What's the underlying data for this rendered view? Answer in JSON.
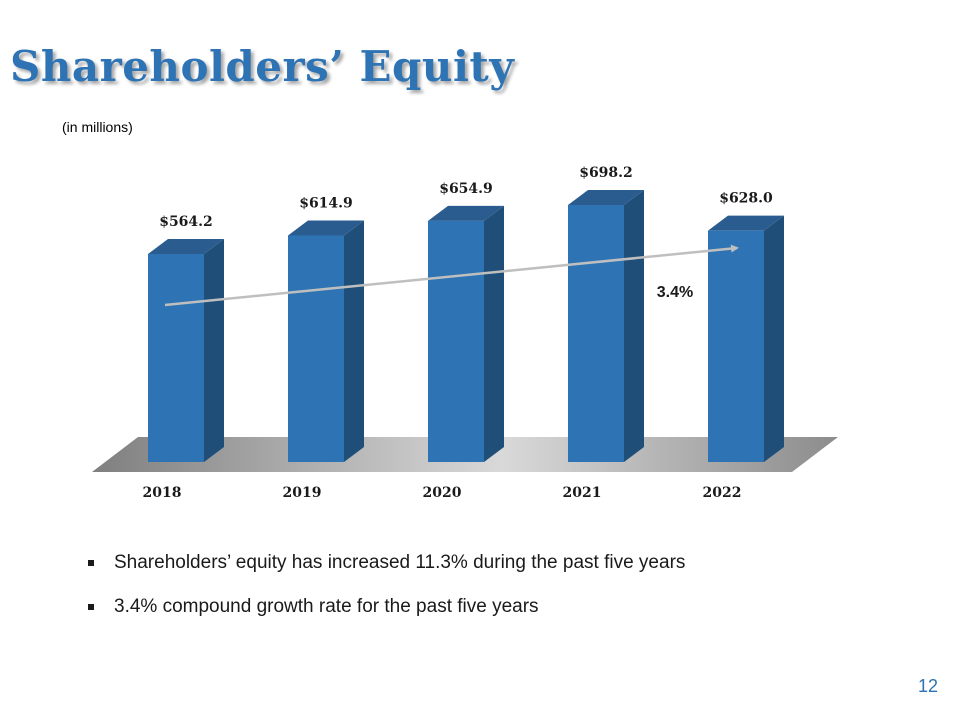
{
  "slide": {
    "title": "Shareholders’ Equity",
    "subtitle": "(in millions)",
    "page_number": "12"
  },
  "bullets": [
    "Shareholders’ equity has increased 11.3% during the past five years",
    "3.4% compound growth rate for the past five years"
  ],
  "colors": {
    "title": "#2e74b5",
    "bar_front": "#2e74b5",
    "bar_side": "#1f4e79",
    "bar_top": "#2a5c8f",
    "trend_line": "#bfbfbf"
  },
  "chart_data": {
    "type": "bar",
    "title": "",
    "xlabel": "",
    "ylabel": "",
    "categories": [
      "2018",
      "2019",
      "2020",
      "2021",
      "2022"
    ],
    "values": [
      564.2,
      614.9,
      654.9,
      698.2,
      628.0
    ],
    "data_labels": [
      "$564.2",
      "$614.9",
      "$654.9",
      "$698.2",
      "$628.0"
    ],
    "trend": {
      "label": "3.4%",
      "from": "2018",
      "to": "2022"
    },
    "grid": false,
    "legend": "none"
  }
}
